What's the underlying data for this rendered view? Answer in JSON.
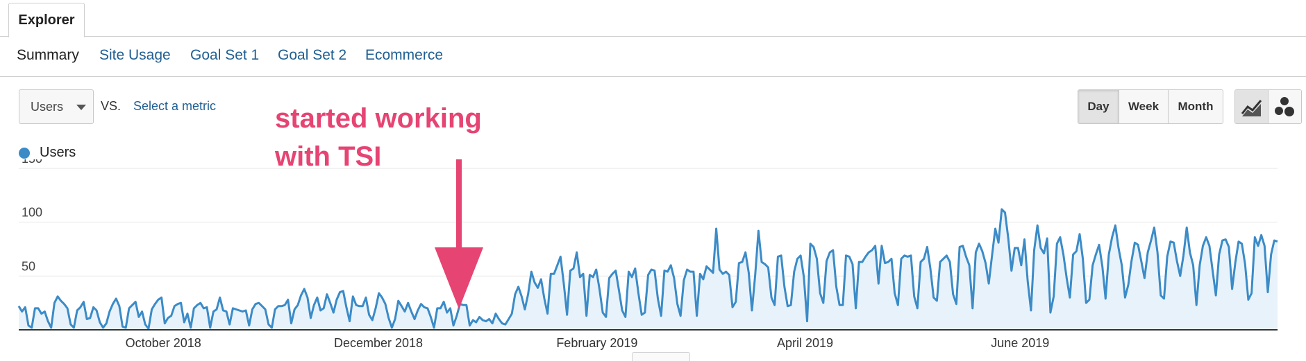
{
  "tabs": {
    "explorer": "Explorer"
  },
  "subnav": [
    "Summary",
    "Site Usage",
    "Goal Set 1",
    "Goal Set 2",
    "Ecommerce"
  ],
  "controls": {
    "metric": "Users",
    "vs": "VS.",
    "select_metric": "Select a metric",
    "periods": [
      "Day",
      "Week",
      "Month"
    ],
    "active_period": "Day",
    "views": [
      "line-chart-icon",
      "motion-chart-icon"
    ]
  },
  "colors": {
    "line": "#3b8bc7",
    "fill": "#e8f2fa",
    "annotation": "#e64472",
    "link": "#1f5f93"
  },
  "annotation": {
    "line1": "started working",
    "line2": "with TSI"
  },
  "chart_data": {
    "type": "area",
    "series": [
      {
        "name": "Users"
      }
    ],
    "x_start": "2018-08-21",
    "x_end": "2019-08-13",
    "ylim": [
      0,
      150
    ],
    "yticks": [
      50,
      100,
      150
    ],
    "xticks": [
      {
        "label": "October 2018",
        "date": "2018-10-01"
      },
      {
        "label": "December 2018",
        "date": "2018-12-01"
      },
      {
        "label": "February 2019",
        "date": "2019-02-01"
      },
      {
        "label": "April 2019",
        "date": "2019-04-01"
      },
      {
        "label": "June 2019",
        "date": "2019-06-01"
      }
    ],
    "values": [
      22,
      17,
      21,
      4,
      2,
      20,
      20,
      15,
      17,
      8,
      2,
      25,
      31,
      27,
      24,
      20,
      5,
      2,
      18,
      21,
      26,
      10,
      11,
      21,
      18,
      7,
      2,
      6,
      17,
      24,
      29,
      22,
      3,
      2,
      20,
      23,
      26,
      12,
      17,
      5,
      1,
      19,
      24,
      28,
      30,
      6,
      11,
      13,
      22,
      24,
      25,
      7,
      15,
      2,
      20,
      23,
      25,
      20,
      21,
      2,
      17,
      19,
      30,
      18,
      17,
      5,
      20,
      19,
      18,
      17,
      18,
      4,
      19,
      24,
      25,
      22,
      19,
      5,
      2,
      19,
      22,
      22,
      23,
      28,
      6,
      19,
      23,
      32,
      38,
      30,
      11,
      23,
      30,
      18,
      20,
      33,
      25,
      16,
      28,
      35,
      36,
      21,
      8,
      31,
      23,
      22,
      22,
      30,
      14,
      9,
      20,
      34,
      30,
      24,
      11,
      2,
      10,
      27,
      22,
      17,
      25,
      17,
      10,
      18,
      24,
      21,
      20,
      12,
      2,
      20,
      20,
      26,
      16,
      20,
      4,
      13,
      24,
      23,
      23,
      4,
      9,
      7,
      12,
      9,
      8,
      10,
      6,
      15,
      10,
      6,
      5,
      10,
      15,
      33,
      40,
      31,
      19,
      33,
      54,
      44,
      39,
      47,
      29,
      15,
      52,
      52,
      60,
      68,
      43,
      14,
      55,
      57,
      72,
      49,
      52,
      13,
      51,
      49,
      56,
      38,
      16,
      12,
      48,
      52,
      55,
      37,
      18,
      12,
      54,
      49,
      57,
      34,
      14,
      16,
      51,
      56,
      55,
      29,
      13,
      55,
      54,
      60,
      48,
      24,
      13,
      46,
      56,
      54,
      54,
      13,
      52,
      47,
      59,
      56,
      53,
      94,
      56,
      52,
      54,
      51,
      21,
      26,
      62,
      63,
      72,
      53,
      18,
      51,
      92,
      63,
      61,
      58,
      30,
      23,
      68,
      69,
      40,
      22,
      23,
      54,
      66,
      69,
      49,
      8,
      80,
      77,
      66,
      34,
      25,
      64,
      72,
      74,
      40,
      23,
      23,
      69,
      68,
      61,
      20,
      63,
      63,
      68,
      72,
      74,
      78,
      43,
      78,
      62,
      63,
      66,
      34,
      23,
      66,
      69,
      68,
      69,
      31,
      20,
      63,
      66,
      77,
      57,
      30,
      27,
      63,
      66,
      69,
      63,
      33,
      24,
      77,
      78,
      68,
      60,
      20,
      72,
      80,
      73,
      62,
      43,
      69,
      94,
      81,
      112,
      109,
      85,
      55,
      76,
      76,
      60,
      84,
      45,
      18,
      74,
      97,
      76,
      71,
      85,
      16,
      31,
      80,
      86,
      70,
      48,
      30,
      70,
      73,
      89,
      66,
      25,
      28,
      60,
      70,
      79,
      59,
      29,
      70,
      86,
      97,
      76,
      60,
      30,
      42,
      64,
      81,
      79,
      64,
      48,
      72,
      83,
      95,
      72,
      32,
      29,
      68,
      82,
      81,
      64,
      50,
      69,
      95,
      72,
      60,
      23,
      60,
      78,
      86,
      78,
      55,
      32,
      70,
      83,
      84,
      77,
      38,
      63,
      82,
      80,
      61,
      28,
      34,
      86,
      78,
      88,
      78,
      35,
      70,
      83,
      82
    ]
  }
}
